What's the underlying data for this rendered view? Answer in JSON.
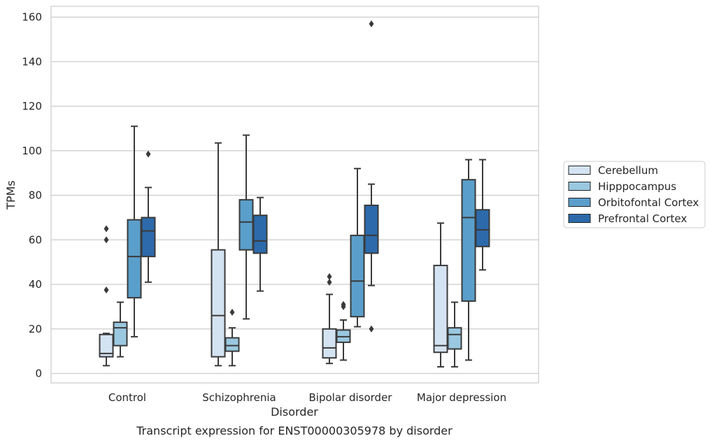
{
  "chart_data": {
    "type": "box",
    "xlabel": "Disorder",
    "ylabel": "TPMs",
    "caption": "Transcript expression for ENST00000305978 by disorder",
    "ylim": [
      -4,
      165
    ],
    "yticks": [
      0,
      20,
      40,
      60,
      80,
      100,
      120,
      140,
      160
    ],
    "grid": "horizontal",
    "legend_placement": "right",
    "categories": [
      "Control",
      "Schizophrenia",
      "Bipolar disorder",
      "Major depression"
    ],
    "series": [
      {
        "name": "Cerebellum",
        "color": "#d4e3f2",
        "boxes": [
          {
            "whisker_low": 3.5,
            "q1": 7.5,
            "median": 9,
            "q3": 17.5,
            "whisker_high": 18,
            "outliers": [
              37.5,
              60,
              65
            ]
          },
          {
            "whisker_low": 3.5,
            "q1": 7.5,
            "median": 26,
            "q3": 55.5,
            "whisker_high": 103.5,
            "outliers": []
          },
          {
            "whisker_low": 4.5,
            "q1": 7,
            "median": 11.5,
            "q3": 20,
            "whisker_high": 35.5,
            "outliers": [
              41,
              43.5
            ]
          },
          {
            "whisker_low": 3,
            "q1": 9.5,
            "median": 12.5,
            "q3": 48.5,
            "whisker_high": 67.5,
            "outliers": []
          }
        ]
      },
      {
        "name": "Hipppocampus",
        "color": "#9ac8e0",
        "boxes": [
          {
            "whisker_low": 7.5,
            "q1": 12.5,
            "median": 20.5,
            "q3": 23,
            "whisker_high": 32,
            "outliers": []
          },
          {
            "whisker_low": 3.5,
            "q1": 10,
            "median": 12.5,
            "q3": 16,
            "whisker_high": 20.5,
            "outliers": [
              27.5
            ]
          },
          {
            "whisker_low": 6,
            "q1": 14,
            "median": 16.5,
            "q3": 19.5,
            "whisker_high": 24,
            "outliers": [
              30,
              31
            ]
          },
          {
            "whisker_low": 3,
            "q1": 11,
            "median": 17.5,
            "q3": 20.5,
            "whisker_high": 32,
            "outliers": []
          }
        ]
      },
      {
        "name": "Orbitofontal Cortex",
        "color": "#5a9fcb",
        "boxes": [
          {
            "whisker_low": 16.5,
            "q1": 34,
            "median": 52.5,
            "q3": 69,
            "whisker_high": 111,
            "outliers": []
          },
          {
            "whisker_low": 24.5,
            "q1": 55.5,
            "median": 68,
            "q3": 78,
            "whisker_high": 107,
            "outliers": []
          },
          {
            "whisker_low": 21,
            "q1": 25.5,
            "median": 41.5,
            "q3": 62,
            "whisker_high": 92,
            "outliers": []
          },
          {
            "whisker_low": 6,
            "q1": 32.5,
            "median": 70,
            "q3": 87,
            "whisker_high": 96,
            "outliers": []
          }
        ]
      },
      {
        "name": "Prefrontal Cortex",
        "color": "#2c6aab",
        "boxes": [
          {
            "whisker_low": 41,
            "q1": 52.5,
            "median": 64,
            "q3": 70,
            "whisker_high": 83.5,
            "outliers": [
              98.5
            ]
          },
          {
            "whisker_low": 37,
            "q1": 54,
            "median": 59.5,
            "q3": 71,
            "whisker_high": 79,
            "outliers": []
          },
          {
            "whisker_low": 39.5,
            "q1": 54,
            "median": 62,
            "q3": 75.5,
            "whisker_high": 85,
            "outliers": [
              20,
              157
            ]
          },
          {
            "whisker_low": 46.5,
            "q1": 57,
            "median": 64.5,
            "q3": 73.5,
            "whisker_high": 96,
            "outliers": []
          }
        ]
      }
    ]
  }
}
